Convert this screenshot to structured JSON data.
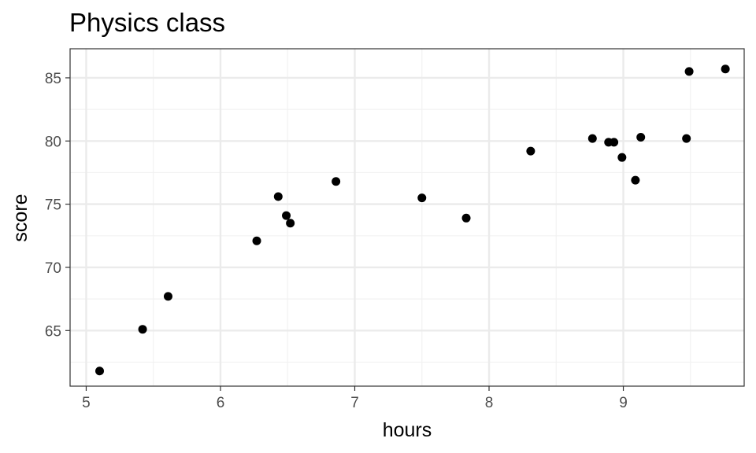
{
  "chart_data": {
    "type": "scatter",
    "title": "Physics class",
    "xlabel": "hours",
    "ylabel": "score",
    "xlim": [
      4.88,
      9.9
    ],
    "ylim": [
      60.6,
      87.3
    ],
    "xticks": [
      5,
      6,
      7,
      8,
      9
    ],
    "yticks": [
      65,
      70,
      75,
      80,
      85
    ],
    "xminor": [
      5.5,
      6.5,
      7.5,
      8.5,
      9.5
    ],
    "yminor": [
      62.5,
      67.5,
      72.5,
      77.5,
      82.5
    ],
    "grid": true,
    "legend": "none",
    "point_color": "#000000",
    "points": [
      {
        "x": 5.1,
        "y": 61.8
      },
      {
        "x": 5.42,
        "y": 65.1
      },
      {
        "x": 5.61,
        "y": 67.7
      },
      {
        "x": 6.27,
        "y": 72.1
      },
      {
        "x": 6.43,
        "y": 75.6
      },
      {
        "x": 6.49,
        "y": 74.1
      },
      {
        "x": 6.52,
        "y": 73.5
      },
      {
        "x": 6.86,
        "y": 76.8
      },
      {
        "x": 7.5,
        "y": 75.5
      },
      {
        "x": 7.83,
        "y": 73.9
      },
      {
        "x": 8.31,
        "y": 79.2
      },
      {
        "x": 8.77,
        "y": 80.2
      },
      {
        "x": 8.89,
        "y": 79.9
      },
      {
        "x": 8.93,
        "y": 79.9
      },
      {
        "x": 8.99,
        "y": 78.7
      },
      {
        "x": 9.09,
        "y": 76.9
      },
      {
        "x": 9.13,
        "y": 80.3
      },
      {
        "x": 9.47,
        "y": 80.2
      },
      {
        "x": 9.49,
        "y": 85.5
      },
      {
        "x": 9.76,
        "y": 85.7
      }
    ]
  }
}
